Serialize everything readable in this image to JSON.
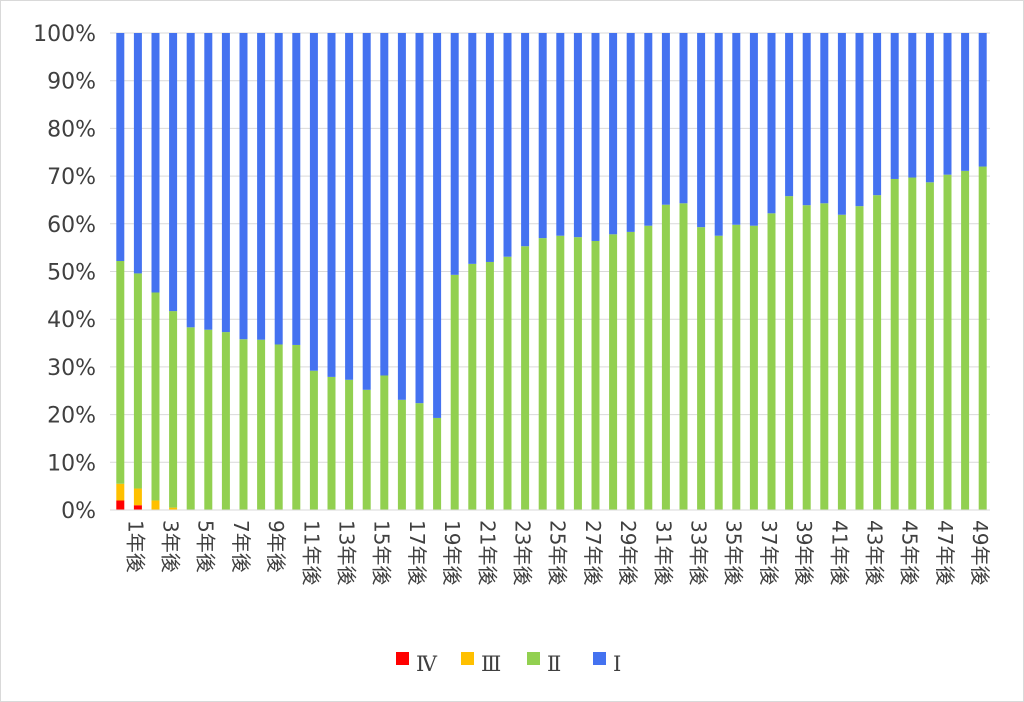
{
  "chart_data": {
    "type": "bar",
    "stacked": true,
    "percent": true,
    "categories": [
      "1年後",
      "2年後",
      "3年後",
      "4年後",
      "5年後",
      "6年後",
      "7年後",
      "8年後",
      "9年後",
      "10年後",
      "11年後",
      "12年後",
      "13年後",
      "14年後",
      "15年後",
      "16年後",
      "17年後",
      "18年後",
      "19年後",
      "20年後",
      "21年後",
      "22年後",
      "23年後",
      "24年後",
      "25年後",
      "26年後",
      "27年後",
      "28年後",
      "29年後",
      "30年後",
      "31年後",
      "32年後",
      "33年後",
      "34年後",
      "35年後",
      "36年後",
      "37年後",
      "38年後",
      "39年後",
      "40年後",
      "41年後",
      "42年後",
      "43年後",
      "44年後",
      "45年後",
      "46年後",
      "47年後",
      "48年後",
      "49年後",
      "50年後"
    ],
    "x_tick_labels": [
      "1年後",
      "3年後",
      "5年後",
      "7年後",
      "9年後",
      "11年後",
      "13年後",
      "15年後",
      "17年後",
      "19年後",
      "21年後",
      "23年後",
      "25年後",
      "27年後",
      "29年後",
      "31年後",
      "33年後",
      "35年後",
      "37年後",
      "39年後",
      "41年後",
      "43年後",
      "45年後",
      "47年後",
      "49年後"
    ],
    "y_tick_labels": [
      "0%",
      "10%",
      "20%",
      "30%",
      "40%",
      "50%",
      "60%",
      "70%",
      "80%",
      "90%",
      "100%"
    ],
    "ylim": [
      0,
      100
    ],
    "grid": true,
    "legend_position": "bottom",
    "series": [
      {
        "name": "Ⅳ",
        "color": "#ff0000",
        "values": [
          2.0,
          1.0,
          0.0,
          0,
          0,
          0,
          0,
          0,
          0,
          0,
          0,
          0,
          0,
          0,
          0,
          0,
          0,
          0,
          0,
          0,
          0,
          0,
          0,
          0,
          0,
          0,
          0,
          0,
          0,
          0,
          0,
          0,
          0,
          0,
          0,
          0,
          0,
          0,
          0,
          0,
          0,
          0,
          0,
          0,
          0,
          0,
          0,
          0,
          0,
          0
        ]
      },
      {
        "name": "Ⅲ",
        "color": "#ffc000",
        "values": [
          3.5,
          3.5,
          2.0,
          0.5,
          0,
          0,
          0,
          0,
          0,
          0,
          0,
          0,
          0,
          0,
          0,
          0,
          0,
          0,
          0,
          0,
          0,
          0,
          0,
          0,
          0,
          0,
          0,
          0,
          0,
          0,
          0,
          0,
          0,
          0,
          0,
          0,
          0,
          0,
          0,
          0,
          0,
          0,
          0,
          0,
          0,
          0,
          0,
          0,
          0,
          0
        ]
      },
      {
        "name": "Ⅱ",
        "color": "#92d050",
        "values": [
          46.7,
          45.1,
          43.6,
          41.2,
          38.3,
          37.8,
          37.3,
          35.8,
          35.7,
          34.7,
          34.6,
          29.2,
          27.9,
          27.3,
          25.2,
          28.2,
          23.1,
          22.4,
          19.3,
          49.3,
          51.6,
          52.0,
          53.1,
          55.3,
          57.0,
          57.5,
          57.2,
          56.4,
          57.8,
          58.3,
          59.6,
          64.0,
          64.3,
          59.3,
          57.5,
          59.8,
          59.6,
          62.2,
          65.8,
          63.9,
          64.3,
          61.9,
          63.7,
          66.0,
          69.4,
          69.7,
          68.7,
          70.3,
          71.1,
          72.0
        ]
      },
      {
        "name": "Ⅰ",
        "color": "#4472f0",
        "values": [
          47.8,
          50.4,
          54.4,
          58.3,
          61.7,
          62.2,
          62.7,
          64.2,
          64.3,
          65.3,
          65.4,
          70.8,
          72.1,
          72.7,
          74.8,
          71.8,
          76.9,
          77.6,
          80.7,
          50.7,
          48.4,
          48.0,
          46.9,
          44.7,
          43.0,
          42.5,
          42.8,
          43.6,
          42.2,
          41.7,
          40.4,
          36.0,
          35.7,
          40.7,
          42.5,
          40.2,
          40.4,
          37.8,
          34.2,
          36.1,
          35.7,
          38.1,
          36.3,
          34.0,
          30.6,
          30.3,
          31.3,
          29.7,
          28.9,
          28.0
        ]
      }
    ]
  }
}
